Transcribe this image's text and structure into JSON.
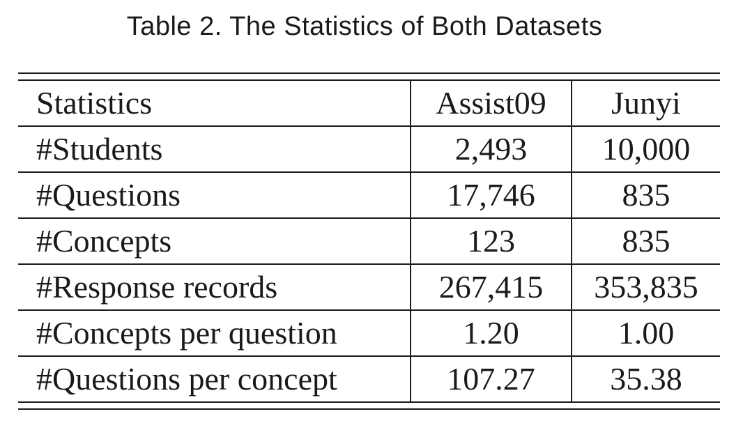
{
  "caption": "Table 2.  The Statistics of Both Datasets",
  "table": {
    "headers": [
      "Statistics",
      "Assist09",
      "Junyi"
    ],
    "rows": [
      [
        "#Students",
        "2,493",
        "10,000"
      ],
      [
        "#Questions",
        "17,746",
        "835"
      ],
      [
        "#Concepts",
        "123",
        "835"
      ],
      [
        "#Response records",
        "267,415",
        "353,835"
      ],
      [
        "#Concepts per question",
        "1.20",
        "1.00"
      ],
      [
        "#Questions per concept",
        "107.27",
        "35.38"
      ]
    ]
  }
}
